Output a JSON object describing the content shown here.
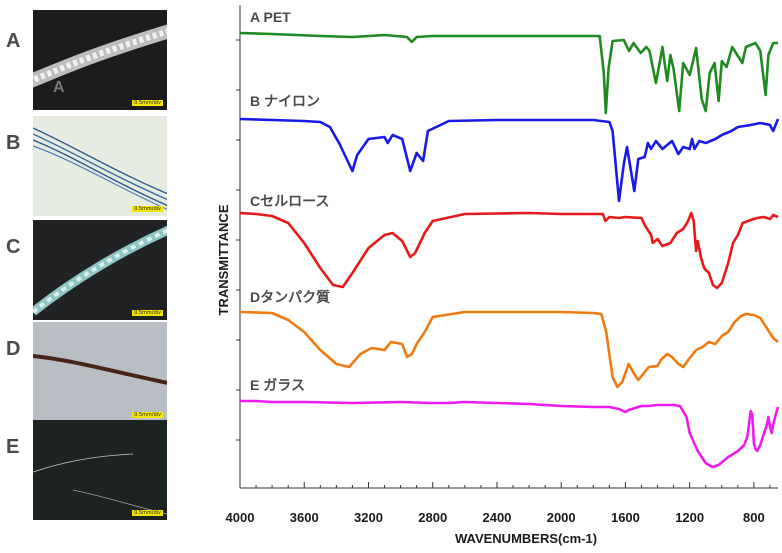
{
  "panels": [
    {
      "letter": "A",
      "scale": "0.5mm/div",
      "inner_letter": "A"
    },
    {
      "letter": "B",
      "scale": "0.5mm/div"
    },
    {
      "letter": "C",
      "scale": "0.5mm/div"
    },
    {
      "letter": "D",
      "scale": "0.5mm/div"
    },
    {
      "letter": "E",
      "scale": "0.5mm/div"
    }
  ],
  "chart_data": {
    "type": "line",
    "xlabel": "WAVENUMBERS(cm-1)",
    "ylabel": "TRANSMITTANCE",
    "xlim": [
      4000,
      650
    ],
    "x_reversed": true,
    "xticks": [
      4000,
      3600,
      3200,
      2800,
      2400,
      2000,
      1600,
      1200,
      800
    ],
    "series": [
      {
        "name": "A PET",
        "color": "#1f8a1f",
        "baseline": 0,
        "depth": 80,
        "points": [
          [
            4000,
            0
          ],
          [
            3800,
            1
          ],
          [
            3500,
            3
          ],
          [
            3300,
            4
          ],
          [
            3100,
            2
          ],
          [
            2960,
            4
          ],
          [
            2930,
            9
          ],
          [
            2900,
            4
          ],
          [
            2800,
            3
          ],
          [
            2400,
            3
          ],
          [
            2000,
            3
          ],
          [
            1760,
            3
          ],
          [
            1735,
            40
          ],
          [
            1722,
            80
          ],
          [
            1705,
            35
          ],
          [
            1680,
            8
          ],
          [
            1610,
            7
          ],
          [
            1578,
            18
          ],
          [
            1550,
            10
          ],
          [
            1505,
            20
          ],
          [
            1470,
            14
          ],
          [
            1450,
            18
          ],
          [
            1410,
            50
          ],
          [
            1385,
            28
          ],
          [
            1370,
            14
          ],
          [
            1340,
            48
          ],
          [
            1320,
            22
          ],
          [
            1300,
            36
          ],
          [
            1265,
            78
          ],
          [
            1240,
            30
          ],
          [
            1200,
            42
          ],
          [
            1160,
            15
          ],
          [
            1125,
            66
          ],
          [
            1100,
            78
          ],
          [
            1075,
            40
          ],
          [
            1045,
            30
          ],
          [
            1020,
            68
          ],
          [
            1000,
            28
          ],
          [
            970,
            34
          ],
          [
            935,
            14
          ],
          [
            872,
            30
          ],
          [
            850,
            14
          ],
          [
            820,
            12
          ],
          [
            790,
            10
          ],
          [
            760,
            18
          ],
          [
            727,
            62
          ],
          [
            710,
            22
          ],
          [
            680,
            10
          ],
          [
            650,
            10
          ]
        ]
      },
      {
        "name": "B ナイロン",
        "color": "#1a1ae6",
        "baseline": 0,
        "depth": 80,
        "points": [
          [
            4000,
            0
          ],
          [
            3800,
            1
          ],
          [
            3600,
            2
          ],
          [
            3500,
            3
          ],
          [
            3440,
            8
          ],
          [
            3380,
            25
          ],
          [
            3330,
            42
          ],
          [
            3300,
            52
          ],
          [
            3270,
            36
          ],
          [
            3200,
            20
          ],
          [
            3100,
            18
          ],
          [
            3080,
            24
          ],
          [
            3050,
            16
          ],
          [
            2990,
            20
          ],
          [
            2940,
            52
          ],
          [
            2900,
            34
          ],
          [
            2860,
            42
          ],
          [
            2830,
            12
          ],
          [
            2700,
            2
          ],
          [
            2400,
            1
          ],
          [
            2000,
            1
          ],
          [
            1800,
            1
          ],
          [
            1700,
            3
          ],
          [
            1680,
            12
          ],
          [
            1640,
            82
          ],
          [
            1610,
            45
          ],
          [
            1590,
            28
          ],
          [
            1545,
            72
          ],
          [
            1520,
            40
          ],
          [
            1480,
            38
          ],
          [
            1460,
            24
          ],
          [
            1440,
            30
          ],
          [
            1410,
            22
          ],
          [
            1370,
            30
          ],
          [
            1310,
            22
          ],
          [
            1270,
            35
          ],
          [
            1240,
            28
          ],
          [
            1200,
            30
          ],
          [
            1185,
            20
          ],
          [
            1170,
            30
          ],
          [
            1140,
            22
          ],
          [
            1100,
            24
          ],
          [
            1040,
            20
          ],
          [
            1000,
            16
          ],
          [
            940,
            12
          ],
          [
            900,
            8
          ],
          [
            820,
            6
          ],
          [
            760,
            4
          ],
          [
            700,
            6
          ],
          [
            680,
            12
          ],
          [
            650,
            0
          ]
        ]
      },
      {
        "name": "Cセルロース",
        "color": "#e61a1a",
        "baseline": 0,
        "depth": 80,
        "points": [
          [
            4000,
            0
          ],
          [
            3900,
            1
          ],
          [
            3800,
            3
          ],
          [
            3700,
            10
          ],
          [
            3600,
            30
          ],
          [
            3500,
            55
          ],
          [
            3420,
            72
          ],
          [
            3360,
            74
          ],
          [
            3300,
            60
          ],
          [
            3200,
            35
          ],
          [
            3100,
            22
          ],
          [
            3050,
            20
          ],
          [
            2990,
            28
          ],
          [
            2940,
            44
          ],
          [
            2910,
            40
          ],
          [
            2880,
            30
          ],
          [
            2850,
            20
          ],
          [
            2800,
            8
          ],
          [
            2600,
            1
          ],
          [
            2200,
            0
          ],
          [
            2000,
            1
          ],
          [
            1800,
            1
          ],
          [
            1740,
            1
          ],
          [
            1725,
            8
          ],
          [
            1700,
            4
          ],
          [
            1640,
            5
          ],
          [
            1600,
            4
          ],
          [
            1500,
            5
          ],
          [
            1480,
            12
          ],
          [
            1440,
            22
          ],
          [
            1430,
            30
          ],
          [
            1400,
            26
          ],
          [
            1370,
            33
          ],
          [
            1320,
            30
          ],
          [
            1280,
            20
          ],
          [
            1240,
            16
          ],
          [
            1210,
            8
          ],
          [
            1190,
            0
          ],
          [
            1175,
            8
          ],
          [
            1160,
            38
          ],
          [
            1150,
            28
          ],
          [
            1130,
            44
          ],
          [
            1110,
            55
          ],
          [
            1080,
            60
          ],
          [
            1055,
            72
          ],
          [
            1030,
            75
          ],
          [
            1000,
            70
          ],
          [
            960,
            50
          ],
          [
            930,
            30
          ],
          [
            900,
            22
          ],
          [
            870,
            10
          ],
          [
            820,
            7
          ],
          [
            780,
            5
          ],
          [
            740,
            4
          ],
          [
            700,
            6
          ],
          [
            680,
            2
          ],
          [
            650,
            4
          ]
        ]
      },
      {
        "name": "Dタンパク質",
        "color": "#f07a10",
        "baseline": 0,
        "depth": 80,
        "points": [
          [
            4000,
            0
          ],
          [
            3800,
            1
          ],
          [
            3700,
            8
          ],
          [
            3600,
            20
          ],
          [
            3500,
            38
          ],
          [
            3400,
            52
          ],
          [
            3320,
            55
          ],
          [
            3250,
            42
          ],
          [
            3180,
            36
          ],
          [
            3100,
            38
          ],
          [
            3060,
            30
          ],
          [
            2990,
            32
          ],
          [
            2960,
            45
          ],
          [
            2930,
            42
          ],
          [
            2900,
            32
          ],
          [
            2850,
            20
          ],
          [
            2800,
            5
          ],
          [
            2600,
            0
          ],
          [
            2200,
            0
          ],
          [
            2000,
            0
          ],
          [
            1800,
            1
          ],
          [
            1750,
            2
          ],
          [
            1720,
            20
          ],
          [
            1680,
            65
          ],
          [
            1650,
            75
          ],
          [
            1620,
            70
          ],
          [
            1580,
            52
          ],
          [
            1545,
            62
          ],
          [
            1520,
            68
          ],
          [
            1480,
            60
          ],
          [
            1455,
            55
          ],
          [
            1400,
            54
          ],
          [
            1380,
            48
          ],
          [
            1340,
            42
          ],
          [
            1310,
            45
          ],
          [
            1270,
            52
          ],
          [
            1240,
            55
          ],
          [
            1200,
            46
          ],
          [
            1160,
            38
          ],
          [
            1120,
            35
          ],
          [
            1080,
            30
          ],
          [
            1040,
            32
          ],
          [
            1000,
            24
          ],
          [
            960,
            20
          ],
          [
            920,
            10
          ],
          [
            880,
            4
          ],
          [
            850,
            2
          ],
          [
            800,
            3
          ],
          [
            760,
            6
          ],
          [
            720,
            16
          ],
          [
            680,
            26
          ],
          [
            650,
            30
          ]
        ]
      },
      {
        "name": "E ガラス",
        "color": "#ef1aef",
        "baseline": 0,
        "depth": 80,
        "points": [
          [
            4000,
            0
          ],
          [
            3900,
            0
          ],
          [
            3800,
            1
          ],
          [
            3600,
            1
          ],
          [
            3300,
            2
          ],
          [
            3000,
            1
          ],
          [
            2800,
            2
          ],
          [
            2700,
            2
          ],
          [
            2600,
            1
          ],
          [
            2400,
            2
          ],
          [
            2200,
            3
          ],
          [
            2000,
            5
          ],
          [
            1800,
            6
          ],
          [
            1700,
            6
          ],
          [
            1640,
            8
          ],
          [
            1600,
            11
          ],
          [
            1580,
            9
          ],
          [
            1540,
            7
          ],
          [
            1500,
            5
          ],
          [
            1460,
            5
          ],
          [
            1400,
            4
          ],
          [
            1300,
            4
          ],
          [
            1260,
            5
          ],
          [
            1220,
            16
          ],
          [
            1200,
            32
          ],
          [
            1150,
            50
          ],
          [
            1100,
            62
          ],
          [
            1060,
            66
          ],
          [
            1020,
            64
          ],
          [
            960,
            56
          ],
          [
            900,
            50
          ],
          [
            860,
            44
          ],
          [
            840,
            35
          ],
          [
            820,
            10
          ],
          [
            810,
            14
          ],
          [
            800,
            42
          ],
          [
            790,
            48
          ],
          [
            780,
            50
          ],
          [
            760,
            44
          ],
          [
            740,
            34
          ],
          [
            720,
            24
          ],
          [
            710,
            16
          ],
          [
            700,
            26
          ],
          [
            690,
            32
          ],
          [
            680,
            24
          ],
          [
            665,
            14
          ],
          [
            650,
            6
          ]
        ]
      }
    ]
  }
}
